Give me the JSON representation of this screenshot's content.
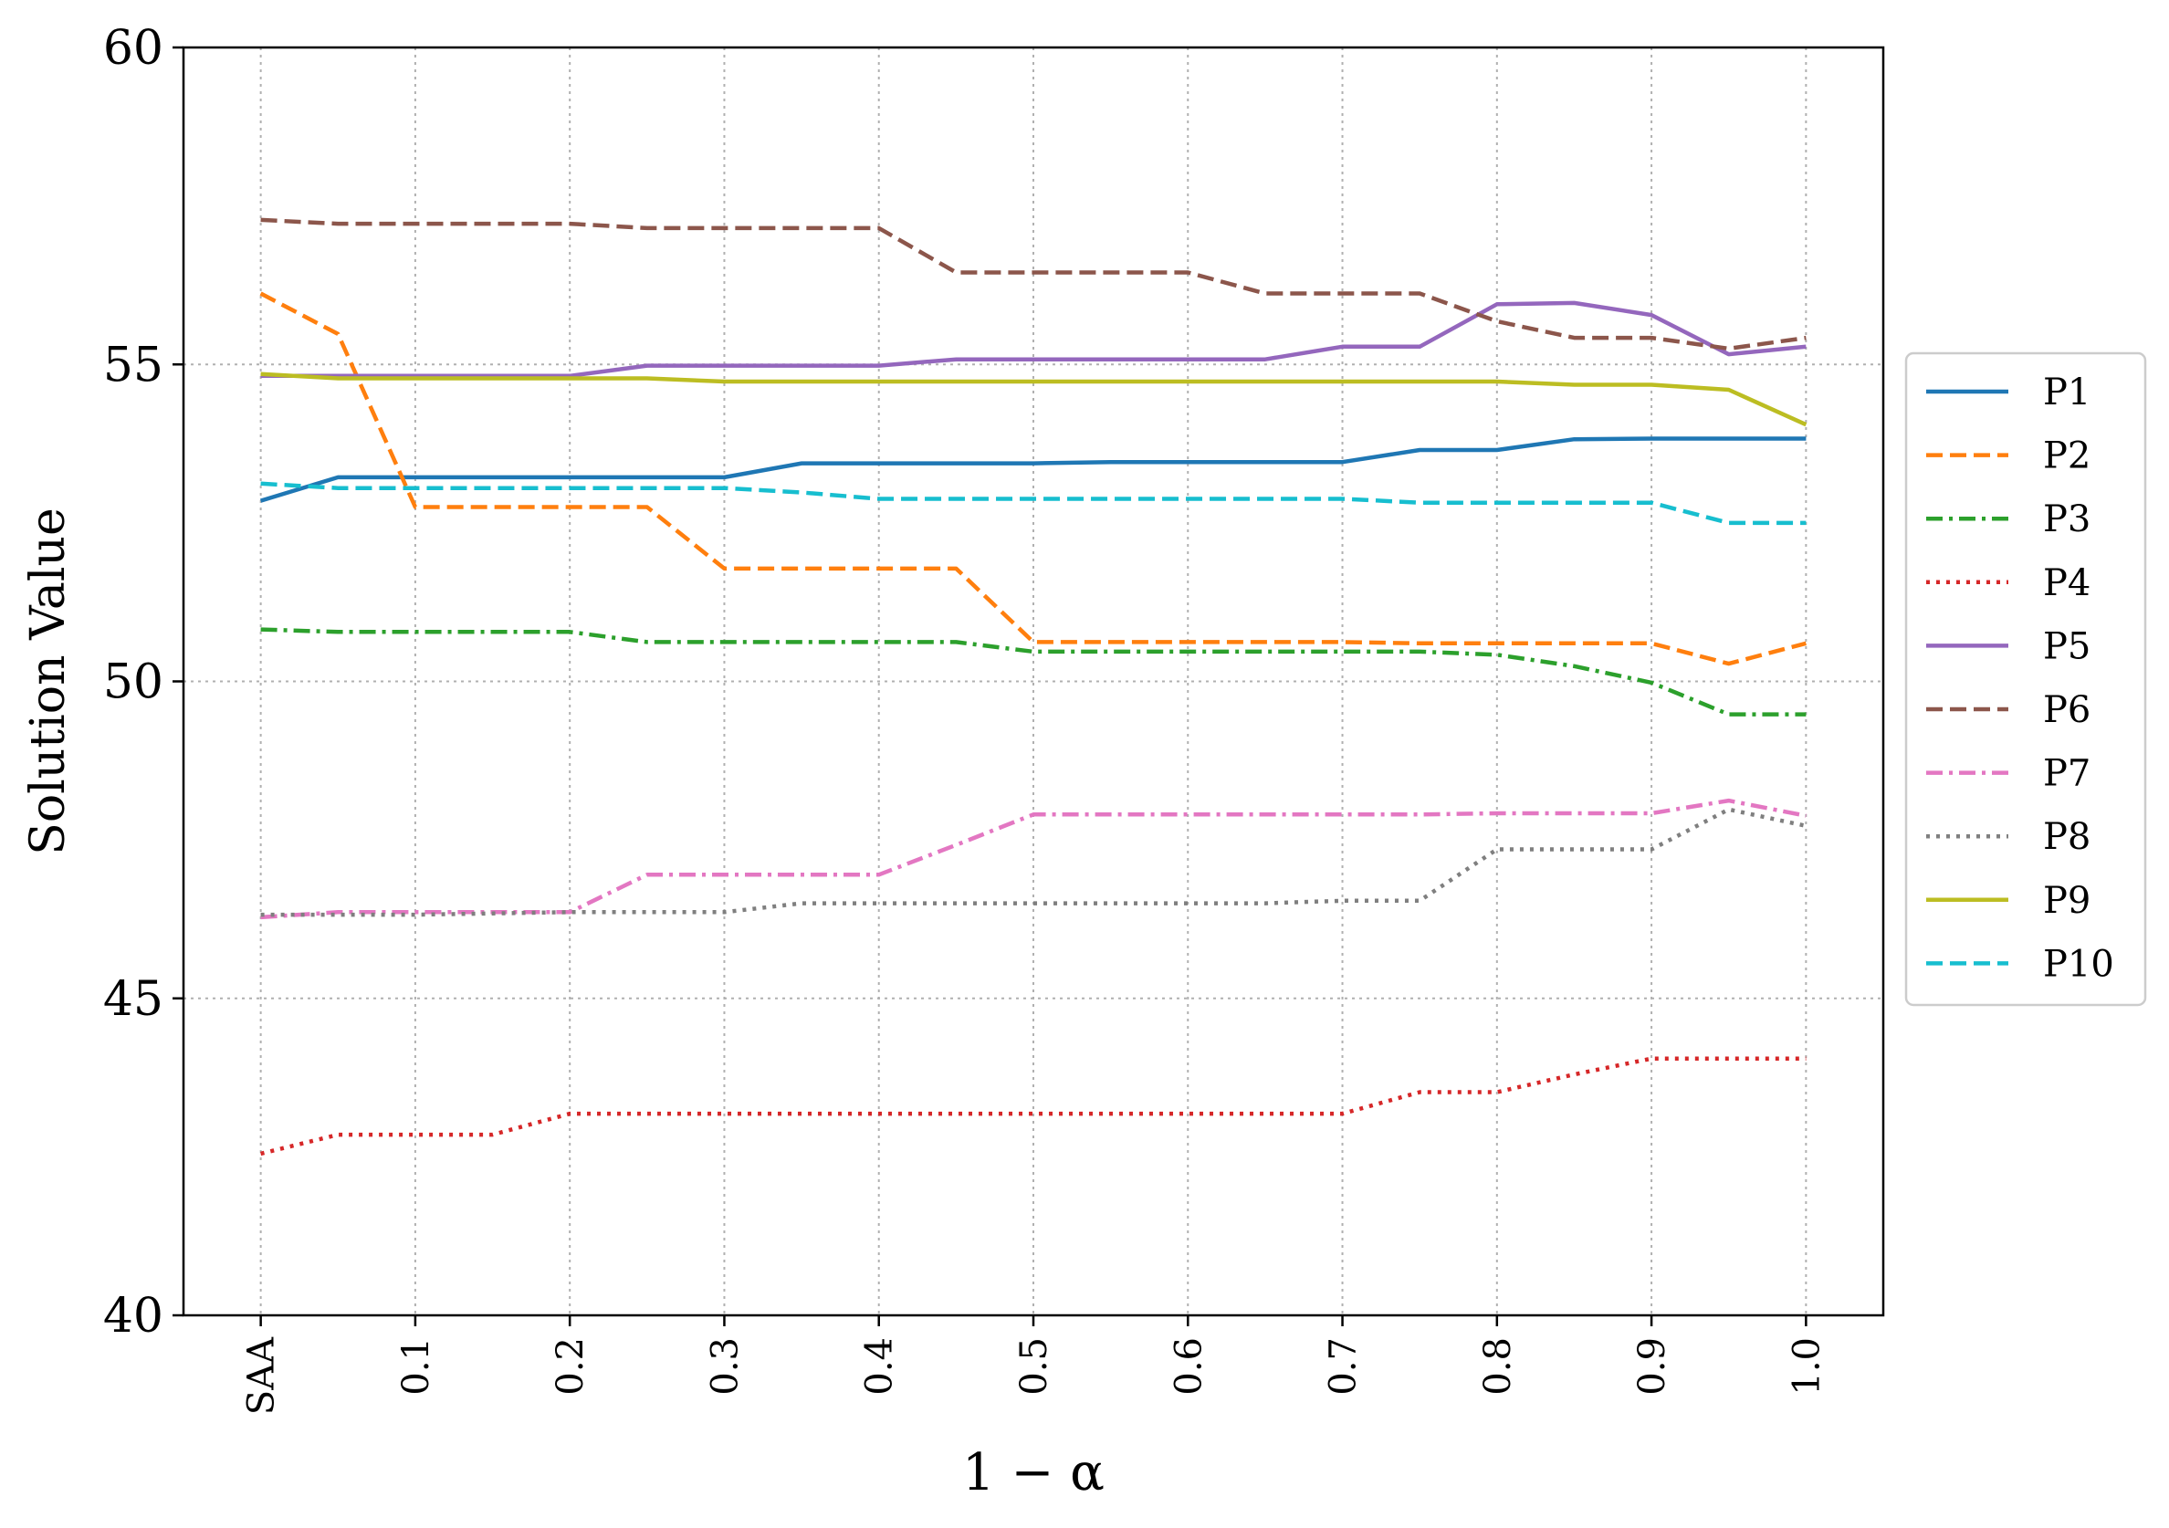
{
  "chart_data": {
    "type": "line",
    "xlabel": "1 − α",
    "ylabel": "Solution Value",
    "x": [
      0,
      0.05,
      0.1,
      0.15,
      0.2,
      0.25,
      0.3,
      0.35,
      0.4,
      0.45,
      0.5,
      0.55,
      0.6,
      0.65,
      0.7,
      0.75,
      0.8,
      0.85,
      0.9,
      0.95,
      1.0
    ],
    "xticks": [
      {
        "value": 0,
        "label": "SAA"
      },
      {
        "value": 0.1,
        "label": "0.1"
      },
      {
        "value": 0.2,
        "label": "0.2"
      },
      {
        "value": 0.3,
        "label": "0.3"
      },
      {
        "value": 0.4,
        "label": "0.4"
      },
      {
        "value": 0.5,
        "label": "0.5"
      },
      {
        "value": 0.6,
        "label": "0.6"
      },
      {
        "value": 0.7,
        "label": "0.7"
      },
      {
        "value": 0.8,
        "label": "0.8"
      },
      {
        "value": 0.9,
        "label": "0.9"
      },
      {
        "value": 1.0,
        "label": "1.0"
      }
    ],
    "yticks": [
      {
        "value": 40,
        "label": "40"
      },
      {
        "value": 45,
        "label": "45"
      },
      {
        "value": 50,
        "label": "50"
      },
      {
        "value": 55,
        "label": "55"
      },
      {
        "value": 60,
        "label": "60"
      }
    ],
    "xlim": [
      -0.05,
      1.05
    ],
    "ylim": [
      40,
      60
    ],
    "grid": true,
    "legend_position": "right-outside",
    "series": [
      {
        "name": "P1",
        "color": "#1f77b4",
        "dash": "solid",
        "values": [
          52.85,
          53.22,
          53.22,
          53.22,
          53.22,
          53.22,
          53.22,
          53.44,
          53.44,
          53.44,
          53.44,
          53.46,
          53.46,
          53.46,
          53.46,
          53.65,
          53.65,
          53.82,
          53.83,
          53.83,
          53.83
        ]
      },
      {
        "name": "P2",
        "color": "#ff7f0e",
        "dash": "dashed",
        "values": [
          56.12,
          55.48,
          52.75,
          52.75,
          52.75,
          52.75,
          51.78,
          51.78,
          51.78,
          51.78,
          50.62,
          50.62,
          50.62,
          50.62,
          50.62,
          50.6,
          50.6,
          50.6,
          50.6,
          50.28,
          50.6
        ]
      },
      {
        "name": "P3",
        "color": "#2ca02c",
        "dash": "dashdot",
        "values": [
          50.82,
          50.78,
          50.78,
          50.78,
          50.78,
          50.62,
          50.62,
          50.62,
          50.62,
          50.62,
          50.47,
          50.47,
          50.47,
          50.47,
          50.47,
          50.47,
          50.42,
          50.24,
          49.98,
          49.48,
          49.48
        ]
      },
      {
        "name": "P4",
        "color": "#d62728",
        "dash": "dotted",
        "values": [
          42.55,
          42.85,
          42.85,
          42.85,
          43.18,
          43.18,
          43.18,
          43.18,
          43.18,
          43.18,
          43.18,
          43.18,
          43.18,
          43.18,
          43.18,
          43.52,
          43.52,
          43.8,
          44.05,
          44.05,
          44.05
        ]
      },
      {
        "name": "P5",
        "color": "#9467bd",
        "dash": "solid",
        "values": [
          54.82,
          54.82,
          54.82,
          54.82,
          54.82,
          54.98,
          54.98,
          54.98,
          54.98,
          55.08,
          55.08,
          55.08,
          55.08,
          55.08,
          55.28,
          55.28,
          55.95,
          55.97,
          55.78,
          55.16,
          55.28
        ]
      },
      {
        "name": "P6",
        "color": "#8c564b",
        "dash": "dashed",
        "values": [
          57.28,
          57.22,
          57.22,
          57.22,
          57.22,
          57.15,
          57.15,
          57.15,
          57.15,
          56.45,
          56.45,
          56.45,
          56.45,
          56.12,
          56.12,
          56.12,
          55.68,
          55.42,
          55.42,
          55.25,
          55.42
        ]
      },
      {
        "name": "P7",
        "color": "#e377c2",
        "dash": "dashdot",
        "values": [
          46.28,
          46.36,
          46.36,
          46.36,
          46.36,
          46.95,
          46.95,
          46.95,
          46.95,
          47.42,
          47.9,
          47.9,
          47.9,
          47.9,
          47.9,
          47.9,
          47.92,
          47.92,
          47.92,
          48.12,
          47.88
        ]
      },
      {
        "name": "P8",
        "color": "#7f7f7f",
        "dash": "dotted",
        "values": [
          46.32,
          46.32,
          46.32,
          46.34,
          46.36,
          46.36,
          46.36,
          46.5,
          46.5,
          46.5,
          46.5,
          46.5,
          46.5,
          46.5,
          46.54,
          46.54,
          47.35,
          47.35,
          47.35,
          47.98,
          47.72
        ]
      },
      {
        "name": "P9",
        "color": "#bcbd22",
        "dash": "solid",
        "values": [
          54.85,
          54.78,
          54.78,
          54.78,
          54.78,
          54.78,
          54.73,
          54.73,
          54.73,
          54.73,
          54.73,
          54.73,
          54.73,
          54.73,
          54.73,
          54.73,
          54.73,
          54.68,
          54.68,
          54.6,
          54.05
        ]
      },
      {
        "name": "P10",
        "color": "#17becf",
        "dash": "dashed",
        "values": [
          53.12,
          53.05,
          53.05,
          53.05,
          53.05,
          53.05,
          53.05,
          52.98,
          52.88,
          52.88,
          52.88,
          52.88,
          52.88,
          52.88,
          52.88,
          52.82,
          52.82,
          52.82,
          52.82,
          52.5,
          52.5
        ]
      }
    ]
  }
}
